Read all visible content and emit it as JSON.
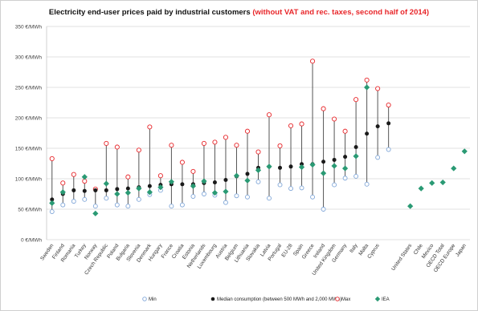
{
  "chart_data": {
    "type": "scatter",
    "title": "Electricity end-user prices paid by industrial customers",
    "title_note": "(without VAT and rec. taxes, second half of 2014)",
    "colors": {
      "min": "#7fa6d8",
      "median": "#1a1a1a",
      "max": "#e8262a",
      "iea": "#2a9a74",
      "range_line": "#555555",
      "grid": "#d9d9d9"
    },
    "ylim": [
      0,
      350
    ],
    "y_ticks": [
      {
        "value": 0,
        "label": "0 €/MWh"
      },
      {
        "value": 50,
        "label": "50 €/MWh"
      },
      {
        "value": 100,
        "label": "100 €/MWh"
      },
      {
        "value": 150,
        "label": "150 €/MWh"
      },
      {
        "value": 200,
        "label": "200 €/MWh"
      },
      {
        "value": 250,
        "label": "250 €/MWh"
      },
      {
        "value": 300,
        "label": "300 €/MWh"
      },
      {
        "value": 350,
        "label": "350 €/MWh"
      }
    ],
    "grid": "horizontal",
    "legend_position": "bottom",
    "series": [
      {
        "key": "min",
        "name": "Min"
      },
      {
        "key": "median",
        "name": "Median consumption (between 500 MWh and 2,000 MWh)"
      },
      {
        "key": "max",
        "name": "Max"
      },
      {
        "key": "iea",
        "name": "IEA"
      }
    ],
    "categories": [
      {
        "name": "Sweden",
        "min": 46,
        "median": 66,
        "max": 133,
        "iea": 60
      },
      {
        "name": "Finland",
        "min": 57,
        "median": 75,
        "max": 93,
        "iea": 78
      },
      {
        "name": "Romania",
        "min": 63,
        "median": 81,
        "max": 107,
        "iea": null
      },
      {
        "name": "Turkey",
        "min": 66,
        "median": 80,
        "max": 96,
        "iea": 103
      },
      {
        "name": "Norway",
        "min": 55,
        "median": 81,
        "max": 83,
        "iea": 43
      },
      {
        "name": "Czech Republic",
        "min": 68,
        "median": 81,
        "max": 158,
        "iea": 92
      },
      {
        "name": "Poland",
        "min": 57,
        "median": 83,
        "max": 152,
        "iea": 75
      },
      {
        "name": "Bulgaria",
        "min": 55,
        "median": 84,
        "max": 103,
        "iea": 77
      },
      {
        "name": "Slovenia",
        "min": 66,
        "median": 86,
        "max": 147,
        "iea": 84
      },
      {
        "name": "Denmark",
        "min": 74,
        "median": 88,
        "max": 185,
        "iea": 78
      },
      {
        "name": "Hungary",
        "min": 81,
        "median": 90,
        "max": 105,
        "iea": 86
      },
      {
        "name": "France",
        "min": 55,
        "median": 91,
        "max": 155,
        "iea": 95
      },
      {
        "name": "Croatia",
        "min": 57,
        "median": 91,
        "max": 127,
        "iea": null
      },
      {
        "name": "Estonia",
        "min": 71,
        "median": 91,
        "max": 112,
        "iea": 88
      },
      {
        "name": "Netherlands",
        "min": 75,
        "median": 93,
        "max": 158,
        "iea": 96
      },
      {
        "name": "Luxembourg",
        "min": 73,
        "median": 94,
        "max": 160,
        "iea": 77
      },
      {
        "name": "Austria",
        "min": 61,
        "median": 98,
        "max": 168,
        "iea": 79
      },
      {
        "name": "Belgium",
        "min": 72,
        "median": 104,
        "max": 155,
        "iea": 105
      },
      {
        "name": "Lithuania",
        "min": 70,
        "median": 108,
        "max": 178,
        "iea": 97
      },
      {
        "name": "Slovakia",
        "min": 95,
        "median": 118,
        "max": 144,
        "iea": 114
      },
      {
        "name": "Latvia",
        "min": 68,
        "median": 120,
        "max": 205,
        "iea": 120
      },
      {
        "name": "Portugal",
        "min": 90,
        "median": 118,
        "max": 154,
        "iea": null
      },
      {
        "name": "EU-28",
        "min": 84,
        "median": 120,
        "max": 187,
        "iea": null
      },
      {
        "name": "Spain",
        "min": 85,
        "median": 124,
        "max": 190,
        "iea": 119
      },
      {
        "name": "Greece",
        "min": 70,
        "median": 124,
        "max": 293,
        "iea": 123
      },
      {
        "name": "Ireland",
        "min": 50,
        "median": 128,
        "max": 215,
        "iea": 109
      },
      {
        "name": "United Kingdom",
        "min": 90,
        "median": 131,
        "max": 198,
        "iea": 121
      },
      {
        "name": "Germany",
        "min": 101,
        "median": 136,
        "max": 178,
        "iea": 117
      },
      {
        "name": "Italy",
        "min": 104,
        "median": 152,
        "max": 230,
        "iea": 137
      },
      {
        "name": "Malta",
        "min": 91,
        "median": 174,
        "max": 262,
        "iea": 250
      },
      {
        "name": "Cyprus",
        "min": 135,
        "median": 186,
        "max": 248,
        "iea": null
      },
      {
        "name": "",
        "min": 148,
        "median": 191,
        "max": 221,
        "iea": null
      },
      {
        "name": "",
        "min": null,
        "median": null,
        "max": null,
        "iea": null
      },
      {
        "name": "United States",
        "min": null,
        "median": null,
        "max": null,
        "iea": 55
      },
      {
        "name": "Chile",
        "min": null,
        "median": null,
        "max": null,
        "iea": 84
      },
      {
        "name": "Mexico",
        "min": null,
        "median": null,
        "max": null,
        "iea": 93
      },
      {
        "name": "OECD Total",
        "min": null,
        "median": null,
        "max": null,
        "iea": 94
      },
      {
        "name": "OECD Europe",
        "min": null,
        "median": null,
        "max": null,
        "iea": 117
      },
      {
        "name": "Japan",
        "min": null,
        "median": null,
        "max": null,
        "iea": 145
      }
    ]
  }
}
